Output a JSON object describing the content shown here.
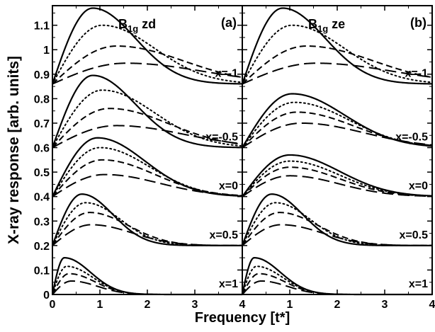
{
  "chart_data": {
    "type": "line",
    "ylabel": "X-ray response [arb. units]",
    "xlabel": "Frequency [t*]",
    "xlim": [
      0,
      4
    ],
    "ylim": [
      0,
      1.18
    ],
    "x_ticks": [
      "0",
      "1",
      "2",
      "3",
      "4"
    ],
    "y_ticks": [
      "0",
      "0.1",
      "0.2",
      "0.3",
      "0.4",
      "0.5",
      "0.6",
      "0.7",
      "0.8",
      "0.9",
      "1",
      "1.1"
    ],
    "line_styles": [
      "solid",
      "dotted",
      "dashed",
      "long-dashed"
    ],
    "panels": [
      {
        "id": "a",
        "tag": "(a)",
        "symmetry": "B",
        "symmetry_sub": "1g",
        "symmetry_suffix": "zd",
        "curve_sets": [
          {
            "label": "x=-1",
            "baseline": 0.86,
            "peaks": [
              {
                "x": 0.85,
                "y": 1.17,
                "end": 0.86
              },
              {
                "x": 1.05,
                "y": 1.1,
                "end": 0.86
              },
              {
                "x": 1.35,
                "y": 1.015,
                "end": 0.86
              },
              {
                "x": 1.55,
                "y": 0.945,
                "end": 0.86
              }
            ]
          },
          {
            "label": "x=-0.5",
            "baseline": 0.6,
            "peaks": [
              {
                "x": 0.85,
                "y": 0.895,
                "end": 0.6
              },
              {
                "x": 1.05,
                "y": 0.835,
                "end": 0.6
              },
              {
                "x": 1.2,
                "y": 0.76,
                "end": 0.6
              },
              {
                "x": 1.35,
                "y": 0.69,
                "end": 0.6
              }
            ]
          },
          {
            "label": "x=0",
            "baseline": 0.4,
            "peaks": [
              {
                "x": 0.95,
                "y": 0.64,
                "end": 0.4
              },
              {
                "x": 1.0,
                "y": 0.6,
                "end": 0.4
              },
              {
                "x": 1.05,
                "y": 0.55,
                "end": 0.4
              },
              {
                "x": 1.1,
                "y": 0.49,
                "end": 0.4
              }
            ]
          },
          {
            "label": "x=0.5",
            "baseline": 0.2,
            "peaks": [
              {
                "x": 0.62,
                "y": 0.41,
                "end": 0.2
              },
              {
                "x": 0.7,
                "y": 0.375,
                "end": 0.2
              },
              {
                "x": 0.78,
                "y": 0.335,
                "end": 0.2
              },
              {
                "x": 0.82,
                "y": 0.285,
                "end": 0.2
              }
            ]
          },
          {
            "label": "x=1",
            "baseline": 0.0,
            "peaks": [
              {
                "x": 0.25,
                "y": 0.15,
                "end": 0.0
              },
              {
                "x": 0.3,
                "y": 0.115,
                "end": 0.0
              },
              {
                "x": 0.35,
                "y": 0.085,
                "end": 0.0
              },
              {
                "x": 0.4,
                "y": 0.055,
                "end": 0.0
              }
            ]
          }
        ]
      },
      {
        "id": "b",
        "tag": "(b)",
        "symmetry": "B",
        "symmetry_sub": "1g",
        "symmetry_suffix": "ze",
        "curve_sets": [
          {
            "label": "x=-1",
            "baseline": 0.86,
            "peaks": [
              {
                "x": 0.85,
                "y": 1.17,
                "end": 0.86
              },
              {
                "x": 1.05,
                "y": 1.1,
                "end": 0.86
              },
              {
                "x": 1.35,
                "y": 1.015,
                "end": 0.86
              },
              {
                "x": 1.55,
                "y": 0.945,
                "end": 0.86
              }
            ]
          },
          {
            "label": "x=-0.5",
            "baseline": 0.6,
            "peaks": [
              {
                "x": 1.05,
                "y": 0.82,
                "end": 0.6
              },
              {
                "x": 1.1,
                "y": 0.785,
                "end": 0.6
              },
              {
                "x": 1.15,
                "y": 0.745,
                "end": 0.6
              },
              {
                "x": 1.25,
                "y": 0.7,
                "end": 0.6
              }
            ]
          },
          {
            "label": "x=0",
            "baseline": 0.4,
            "peaks": [
              {
                "x": 1.0,
                "y": 0.57,
                "end": 0.4
              },
              {
                "x": 1.0,
                "y": 0.545,
                "end": 0.4
              },
              {
                "x": 1.0,
                "y": 0.52,
                "end": 0.4
              },
              {
                "x": 1.0,
                "y": 0.485,
                "end": 0.4
              }
            ]
          },
          {
            "label": "x=0.5",
            "baseline": 0.2,
            "peaks": [
              {
                "x": 0.62,
                "y": 0.41,
                "end": 0.2
              },
              {
                "x": 0.7,
                "y": 0.375,
                "end": 0.2
              },
              {
                "x": 0.78,
                "y": 0.335,
                "end": 0.2
              },
              {
                "x": 0.82,
                "y": 0.285,
                "end": 0.2
              }
            ]
          },
          {
            "label": "x=1",
            "baseline": 0.0,
            "peaks": [
              {
                "x": 0.25,
                "y": 0.15,
                "end": 0.0
              },
              {
                "x": 0.3,
                "y": 0.115,
                "end": 0.0
              },
              {
                "x": 0.35,
                "y": 0.085,
                "end": 0.0
              },
              {
                "x": 0.4,
                "y": 0.055,
                "end": 0.0
              }
            ]
          }
        ]
      }
    ]
  }
}
